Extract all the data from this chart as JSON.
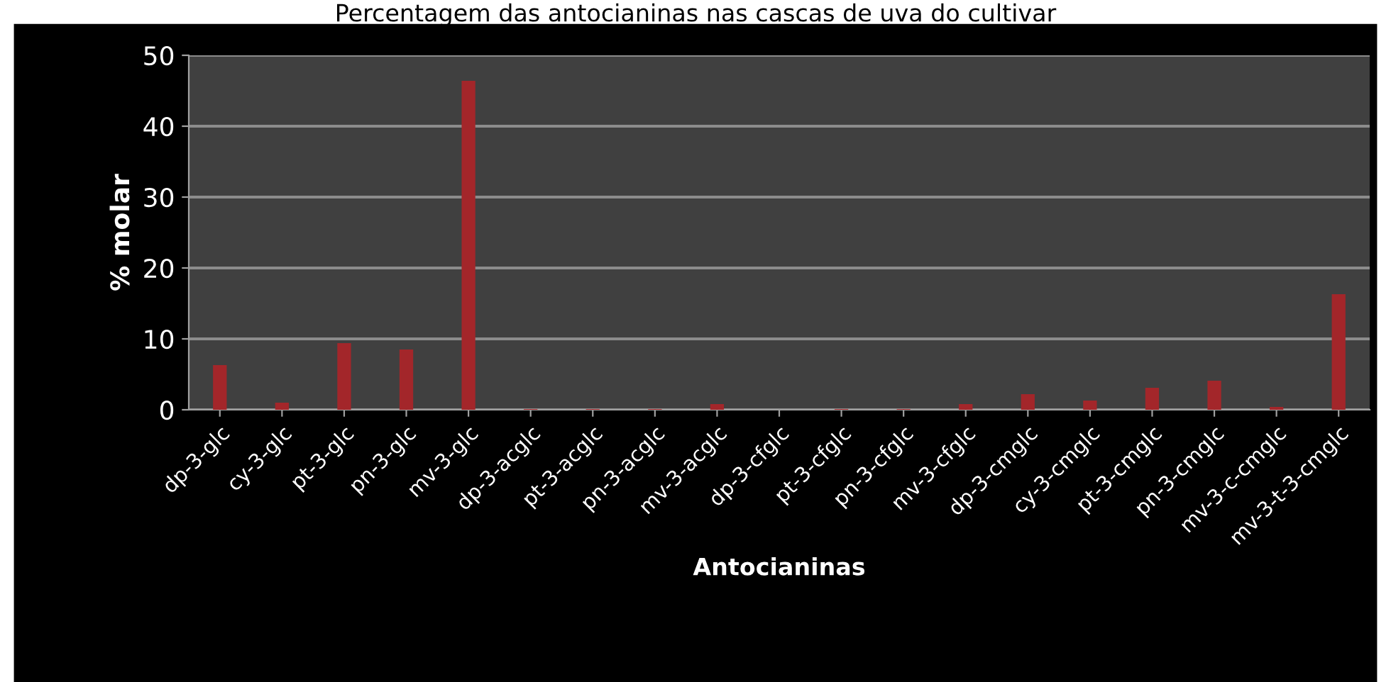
{
  "chart_data": {
    "type": "bar",
    "title": "Percentagem das antocianinas nas cascas de uva do cultivar",
    "xlabel": "Antocianinas",
    "ylabel": "% molar",
    "categories": [
      "dp-3-glc",
      "cy-3-glc",
      "pt-3-glc",
      "pn-3-glc",
      "mv-3-glc",
      "dp-3-acglc",
      "pt-3-acglc",
      "pn-3-acglc",
      "mv-3-acglc",
      "dp-3-cfglc",
      "pt-3-cfglc",
      "pn-3-cfglc",
      "mv-3-cfglc",
      "dp-3-cmglc",
      "cy-3-cmglc",
      "pt-3-cmglc",
      "pn-3-cmglc",
      "mv-3-c-cmglc",
      "mv-3-t-3-cmglc"
    ],
    "values": [
      6.3,
      1.0,
      9.4,
      8.5,
      46.4,
      0.1,
      0.1,
      0.1,
      0.8,
      0,
      0.1,
      0.1,
      0.8,
      2.2,
      1.3,
      3.1,
      4.1,
      0.4,
      16.3
    ],
    "color": "#a3262a",
    "ylim": [
      0,
      50
    ],
    "yticks": [
      0,
      10,
      20,
      30,
      40,
      50
    ],
    "grid": "y"
  }
}
